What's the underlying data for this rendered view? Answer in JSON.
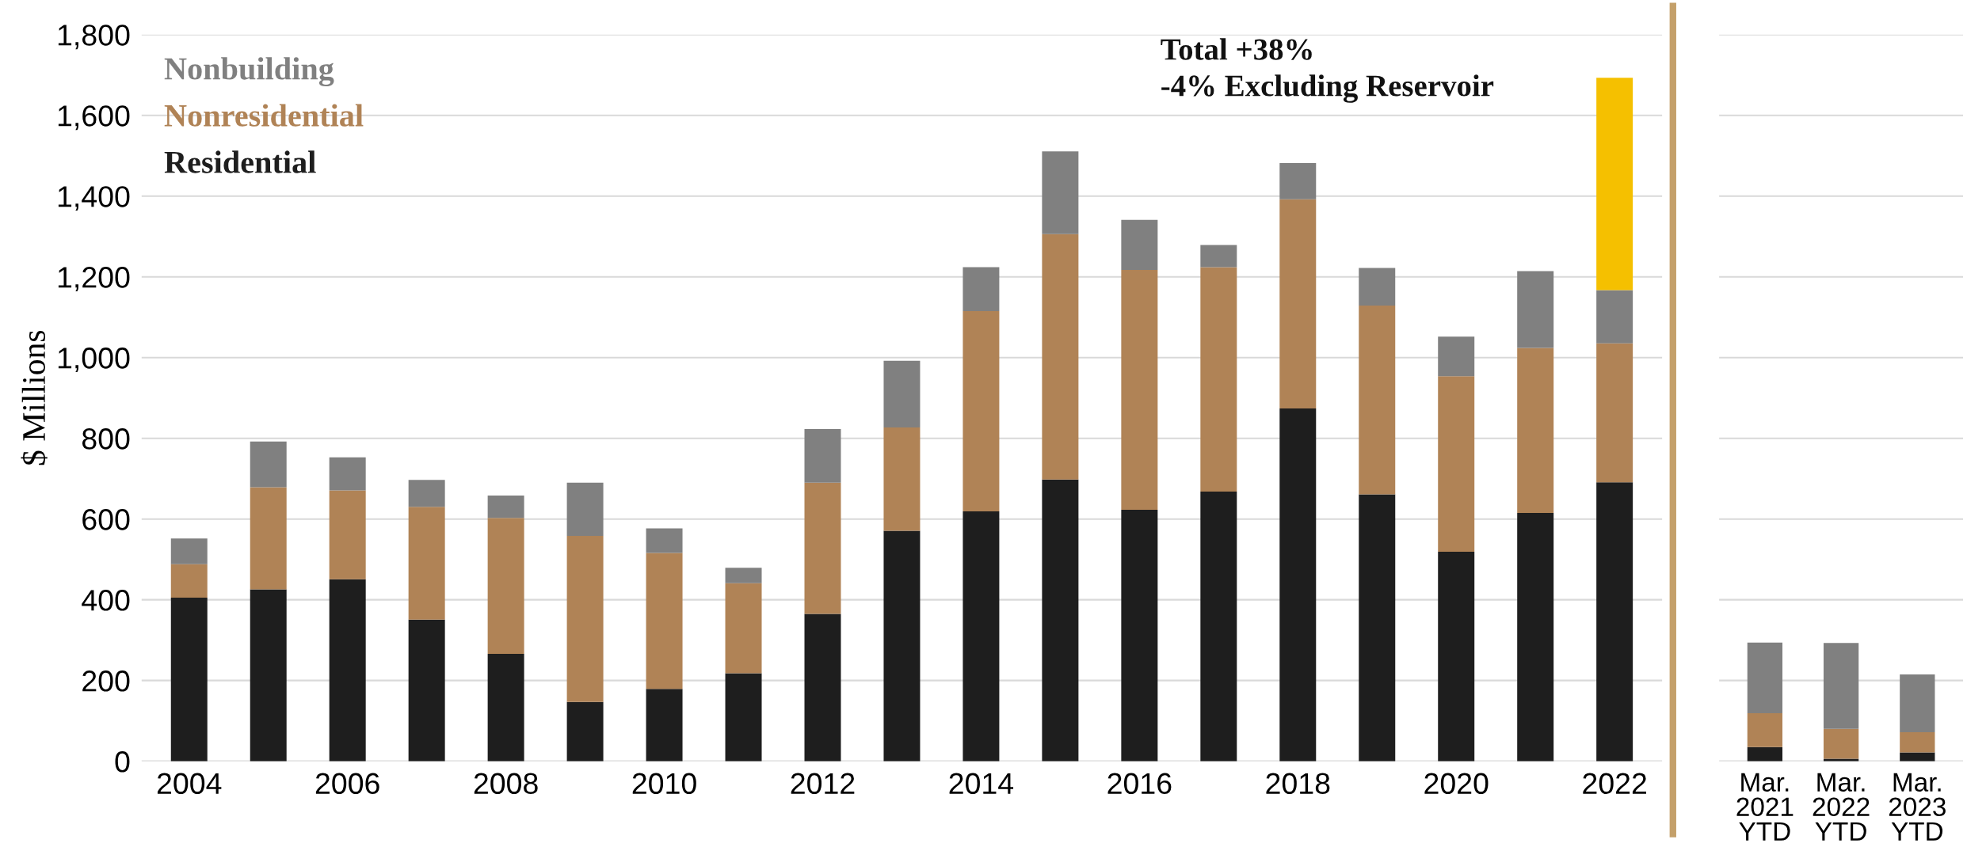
{
  "chart_data": [
    {
      "type": "bar",
      "stacked": true,
      "ylabel": "$ Millions",
      "categories": [
        "2004",
        null,
        "2006",
        null,
        "2008",
        null,
        "2010",
        null,
        "2012",
        null,
        "2014",
        null,
        "2016",
        null,
        "2018",
        null,
        "2020",
        null,
        "2022"
      ],
      "series": [
        {
          "name": "Residential",
          "color": "#1e1e1e",
          "values": [
            405,
            426,
            451,
            351,
            266,
            147,
            179,
            218,
            365,
            571,
            619,
            698,
            623,
            668,
            874,
            661,
            519,
            615,
            691
          ]
        },
        {
          "name": "Nonresidential",
          "color": "#b08356",
          "values": [
            83,
            253,
            220,
            279,
            337,
            411,
            337,
            223,
            325,
            256,
            496,
            608,
            594,
            556,
            518,
            468,
            435,
            409,
            344
          ]
        },
        {
          "name": "Nonbuilding",
          "color": "#808080",
          "values": [
            64,
            113,
            82,
            67,
            55,
            132,
            61,
            38,
            133,
            165,
            109,
            205,
            124,
            55,
            90,
            93,
            98,
            190,
            132
          ]
        },
        {
          "color": "#f5c000",
          "values": [
            null,
            null,
            null,
            null,
            null,
            null,
            null,
            null,
            null,
            null,
            null,
            null,
            null,
            null,
            null,
            null,
            null,
            null,
            526
          ]
        }
      ],
      "ylim": [
        0,
        1800
      ],
      "yticks": [
        {
          "value": 0,
          "label": "0"
        },
        {
          "value": 200,
          "label": "200"
        },
        {
          "value": 400,
          "label": "400"
        },
        {
          "value": 600,
          "label": "600"
        },
        {
          "value": 800,
          "label": "800"
        },
        {
          "value": 1000,
          "label": "1,000"
        },
        {
          "value": 1200,
          "label": "1,200"
        },
        {
          "value": 1400,
          "label": "1,400"
        },
        {
          "value": 1600,
          "label": "1,600"
        },
        {
          "value": 1800,
          "label": "1,800"
        }
      ],
      "grid": "y",
      "legend": "top left",
      "annotations": [
        "Total +38%",
        "-4% Excluding Reservoir"
      ]
    },
    {
      "type": "bar",
      "stacked": true,
      "categories": [
        "Mar.\n2021\nYTD",
        "Mar.\n2022\nYTD",
        "Mar.\n2023\nYTD"
      ],
      "series": [
        {
          "color": "#1e1e1e",
          "values": [
            35,
            6,
            22
          ]
        },
        {
          "color": "#b08356",
          "values": [
            84,
            74,
            50
          ]
        },
        {
          "color": "#808080",
          "values": [
            175,
            213,
            143
          ]
        }
      ],
      "ylim": [
        0,
        1800
      ],
      "yticks": [
        0,
        200,
        400,
        600,
        800,
        1000,
        1200,
        1400,
        1600,
        1800
      ],
      "grid": "y",
      "tick_labels": "x"
    }
  ]
}
